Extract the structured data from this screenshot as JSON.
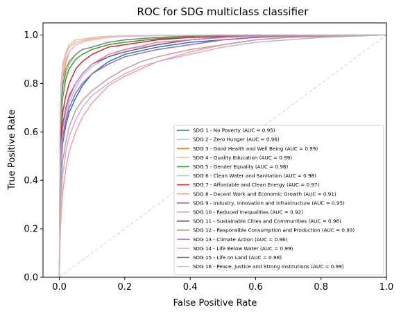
{
  "chart_data": {
    "type": "line",
    "title": "ROC for SDG multiclass classifier",
    "xlabel": "False Positive Rate",
    "ylabel": "True Positive Rate",
    "xlim": [
      -0.05,
      1.0
    ],
    "ylim": [
      0.0,
      1.05
    ],
    "x_ticks": [
      "0.0",
      "0.2",
      "0.4",
      "0.6",
      "0.8",
      "1.0"
    ],
    "y_ticks": [
      "0.0",
      "0.2",
      "0.4",
      "0.6",
      "0.8",
      "1.0"
    ],
    "grid": false,
    "legend_position": "lower-right",
    "reference_line": {
      "x": [
        0,
        1
      ],
      "y": [
        0,
        1
      ],
      "color": "#d3d3d3",
      "style": "dashed"
    },
    "series": [
      {
        "name": "SDG 1 - No Poverty (AUC = 0.95)",
        "color": "#1f77b4",
        "x": [
          0,
          0.002,
          0.005,
          0.01,
          0.02,
          0.03,
          0.05,
          0.07,
          0.1,
          0.15,
          0.2,
          0.3,
          0.4,
          0.5,
          0.6,
          0.7,
          1.0
        ],
        "y": [
          0,
          0.3,
          0.45,
          0.55,
          0.63,
          0.68,
          0.74,
          0.79,
          0.84,
          0.89,
          0.92,
          0.95,
          0.97,
          0.98,
          0.99,
          0.995,
          1.0
        ]
      },
      {
        "name": "SDG 2 - Zero Hunger (AUC = 0.96)",
        "color": "#aec7e8",
        "x": [
          0,
          0.002,
          0.005,
          0.01,
          0.02,
          0.03,
          0.05,
          0.07,
          0.1,
          0.15,
          0.2,
          0.3,
          0.4,
          0.5,
          0.6,
          1.0
        ],
        "y": [
          0,
          0.32,
          0.47,
          0.57,
          0.66,
          0.72,
          0.78,
          0.83,
          0.87,
          0.91,
          0.94,
          0.96,
          0.98,
          0.99,
          0.995,
          1.0
        ]
      },
      {
        "name": "SDG 3 - Good Health and Well Being (AUC = 0.99)",
        "color": "#ff7f0e",
        "x": [
          0,
          0.002,
          0.005,
          0.01,
          0.02,
          0.03,
          0.05,
          0.08,
          0.1,
          0.15,
          0.2,
          0.3,
          0.5,
          1.0
        ],
        "y": [
          0,
          0.55,
          0.72,
          0.82,
          0.89,
          0.93,
          0.96,
          0.975,
          0.98,
          0.99,
          0.995,
          0.998,
          1.0,
          1.0
        ]
      },
      {
        "name": "SDG 4 - Quality Education (AUC = 0.99)",
        "color": "#ffbb78",
        "x": [
          0,
          0.002,
          0.005,
          0.01,
          0.02,
          0.03,
          0.05,
          0.08,
          0.1,
          0.15,
          0.2,
          0.3,
          0.5,
          1.0
        ],
        "y": [
          0,
          0.6,
          0.77,
          0.86,
          0.92,
          0.95,
          0.97,
          0.98,
          0.985,
          0.99,
          0.995,
          0.998,
          1.0,
          1.0
        ]
      },
      {
        "name": "SDG 5 - Gender Equality (AUC = 0.98)",
        "color": "#2ca02c",
        "x": [
          0,
          0.002,
          0.005,
          0.01,
          0.02,
          0.03,
          0.05,
          0.07,
          0.1,
          0.15,
          0.2,
          0.3,
          0.4,
          0.6,
          1.0
        ],
        "y": [
          0,
          0.45,
          0.62,
          0.74,
          0.82,
          0.86,
          0.9,
          0.92,
          0.94,
          0.96,
          0.97,
          0.985,
          0.99,
          0.998,
          1.0
        ]
      },
      {
        "name": "SDG 6 - Clean Water and Sanitation (AUC = 0.98)",
        "color": "#98df8a",
        "x": [
          0,
          0.002,
          0.005,
          0.01,
          0.02,
          0.03,
          0.05,
          0.07,
          0.1,
          0.15,
          0.2,
          0.3,
          0.4,
          0.6,
          1.0
        ],
        "y": [
          0,
          0.5,
          0.66,
          0.76,
          0.84,
          0.88,
          0.92,
          0.94,
          0.95,
          0.97,
          0.98,
          0.99,
          0.995,
          0.998,
          1.0
        ]
      },
      {
        "name": "SDG 7 - Affordable and Clean Energy (AUC = 0.97)",
        "color": "#d62728",
        "x": [
          0,
          0.002,
          0.005,
          0.01,
          0.02,
          0.03,
          0.05,
          0.07,
          0.1,
          0.15,
          0.2,
          0.3,
          0.4,
          0.6,
          1.0
        ],
        "y": [
          0,
          0.4,
          0.58,
          0.68,
          0.75,
          0.8,
          0.86,
          0.89,
          0.92,
          0.95,
          0.96,
          0.98,
          0.99,
          0.995,
          1.0
        ]
      },
      {
        "name": "SDG 8 - Decent Work and Economic Growth (AUC = 0.91)",
        "color": "#ff9896",
        "x": [
          0,
          0.002,
          0.005,
          0.01,
          0.02,
          0.03,
          0.05,
          0.07,
          0.1,
          0.15,
          0.2,
          0.25,
          0.3,
          0.4,
          0.5,
          0.6,
          0.7,
          0.8,
          1.0
        ],
        "y": [
          0,
          0.15,
          0.25,
          0.35,
          0.45,
          0.52,
          0.6,
          0.66,
          0.72,
          0.79,
          0.83,
          0.86,
          0.89,
          0.93,
          0.96,
          0.98,
          0.99,
          1.0,
          1.0
        ]
      },
      {
        "name": "SDG 9 - Industry, Innovation and Infrastructure (AUC = 0.95)",
        "color": "#9467bd",
        "x": [
          0,
          0.002,
          0.005,
          0.01,
          0.02,
          0.03,
          0.05,
          0.07,
          0.1,
          0.15,
          0.2,
          0.3,
          0.4,
          0.5,
          0.6,
          0.7,
          1.0
        ],
        "y": [
          0,
          0.35,
          0.5,
          0.58,
          0.65,
          0.7,
          0.76,
          0.8,
          0.84,
          0.88,
          0.91,
          0.94,
          0.96,
          0.98,
          0.99,
          0.995,
          1.0
        ]
      },
      {
        "name": "SDG 10 - Reduced Inequalities (AUC = 0.92)",
        "color": "#c5b0d5",
        "x": [
          0,
          0.002,
          0.005,
          0.01,
          0.02,
          0.03,
          0.05,
          0.07,
          0.1,
          0.15,
          0.2,
          0.25,
          0.3,
          0.4,
          0.5,
          0.6,
          0.7,
          0.8,
          1.0
        ],
        "y": [
          0,
          0.2,
          0.32,
          0.42,
          0.52,
          0.58,
          0.65,
          0.7,
          0.75,
          0.8,
          0.84,
          0.87,
          0.89,
          0.92,
          0.95,
          0.97,
          0.98,
          0.99,
          1.0
        ]
      },
      {
        "name": "SDG 11 - Sustainable Cities and Communities (AUC = 0.96)",
        "color": "#8c564b",
        "x": [
          0,
          0.002,
          0.005,
          0.01,
          0.02,
          0.03,
          0.05,
          0.07,
          0.1,
          0.15,
          0.2,
          0.3,
          0.4,
          0.5,
          0.6,
          1.0
        ],
        "y": [
          0,
          0.4,
          0.55,
          0.63,
          0.7,
          0.75,
          0.8,
          0.84,
          0.88,
          0.91,
          0.93,
          0.96,
          0.98,
          0.99,
          0.995,
          1.0
        ]
      },
      {
        "name": "SDG 12 - Responsible Consumption and Production (AUC = 0.93)",
        "color": "#c49c94",
        "x": [
          0,
          0.002,
          0.005,
          0.01,
          0.02,
          0.03,
          0.05,
          0.07,
          0.1,
          0.15,
          0.2,
          0.25,
          0.3,
          0.4,
          0.5,
          0.6,
          0.7,
          1.0
        ],
        "y": [
          0,
          0.25,
          0.38,
          0.48,
          0.56,
          0.62,
          0.69,
          0.73,
          0.77,
          0.82,
          0.86,
          0.89,
          0.91,
          0.94,
          0.96,
          0.98,
          0.99,
          1.0
        ]
      },
      {
        "name": "SDG 13 - Climate Action (AUC = 0.96)",
        "color": "#e377c2",
        "x": [
          0,
          0.002,
          0.005,
          0.01,
          0.02,
          0.03,
          0.05,
          0.07,
          0.1,
          0.15,
          0.2,
          0.3,
          0.4,
          0.5,
          0.6,
          1.0
        ],
        "y": [
          0,
          0.38,
          0.52,
          0.61,
          0.69,
          0.74,
          0.8,
          0.84,
          0.88,
          0.92,
          0.94,
          0.97,
          0.98,
          0.99,
          0.995,
          1.0
        ]
      },
      {
        "name": "SDG 14 - Life Below Water (AUC = 0.99)",
        "color": "#f7b6d2",
        "x": [
          0,
          0.002,
          0.005,
          0.01,
          0.02,
          0.03,
          0.05,
          0.08,
          0.1,
          0.15,
          0.2,
          0.3,
          0.5,
          1.0
        ],
        "y": [
          0,
          0.58,
          0.75,
          0.84,
          0.9,
          0.93,
          0.96,
          0.975,
          0.98,
          0.99,
          0.993,
          0.997,
          1.0,
          1.0
        ]
      },
      {
        "name": "SDG 15 - Life on Land (AUC = 0.98)",
        "color": "#7f7f7f",
        "x": [
          0,
          0.002,
          0.005,
          0.01,
          0.02,
          0.03,
          0.05,
          0.07,
          0.1,
          0.15,
          0.2,
          0.3,
          0.4,
          0.6,
          1.0
        ],
        "y": [
          0,
          0.55,
          0.7,
          0.79,
          0.86,
          0.89,
          0.92,
          0.94,
          0.95,
          0.97,
          0.98,
          0.99,
          0.995,
          0.998,
          1.0
        ]
      },
      {
        "name": "SDG 16 - Peace, Justice and Strong Institutions (AUC = 0.99)",
        "color": "#c7c7c7",
        "x": [
          0,
          0.002,
          0.005,
          0.01,
          0.02,
          0.03,
          0.05,
          0.08,
          0.1,
          0.15,
          0.2,
          0.3,
          0.5,
          1.0
        ],
        "y": [
          0,
          0.62,
          0.8,
          0.88,
          0.93,
          0.96,
          0.98,
          0.985,
          0.99,
          0.995,
          0.997,
          0.999,
          1.0,
          1.0
        ]
      }
    ]
  }
}
